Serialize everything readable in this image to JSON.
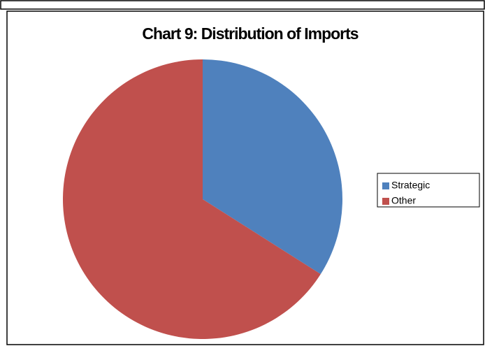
{
  "chart_data": {
    "type": "pie",
    "title": "Chart 9: Distribution of Imports",
    "categories": [
      "Strategic",
      "Other"
    ],
    "values": [
      34,
      66
    ],
    "colors": [
      "#4f81bd",
      "#c0504d"
    ],
    "legend": "right"
  }
}
